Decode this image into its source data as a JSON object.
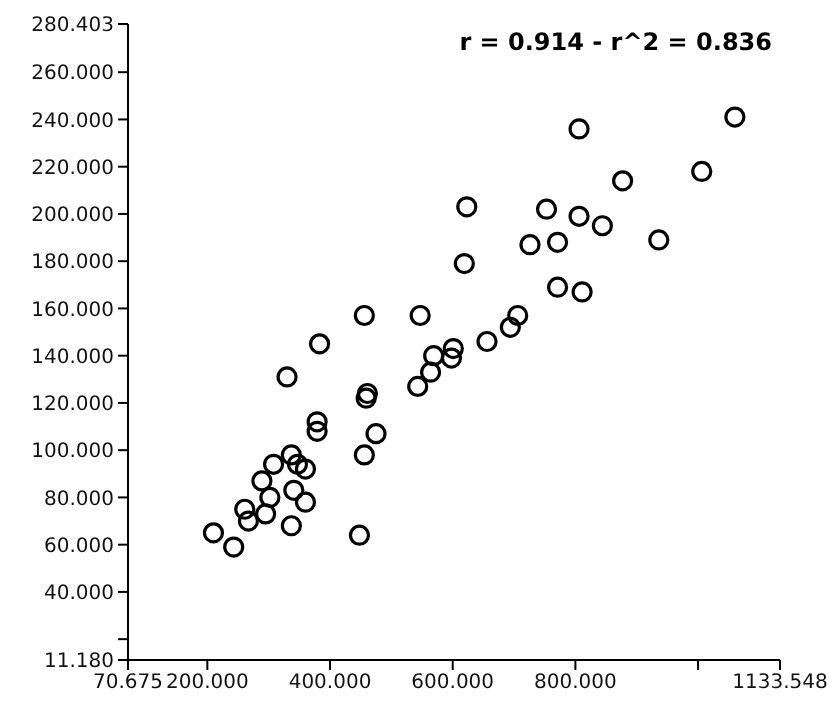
{
  "chart_data": {
    "type": "scatter",
    "annotations": [
      "r = 0.914 - r^2 = 0.836"
    ],
    "x": [
      210,
      243,
      261,
      267,
      289,
      295,
      302,
      308,
      337,
      337,
      341,
      347,
      360,
      360,
      330,
      379,
      379,
      383,
      448,
      456,
      456,
      459,
      461,
      475,
      543,
      547,
      564,
      569,
      598,
      601,
      619,
      623,
      656,
      694,
      706,
      726,
      753,
      771,
      771,
      806,
      806,
      811,
      844,
      877,
      936,
      1006,
      1060
    ],
    "series": [
      {
        "color": "#000000",
        "values": [
          65,
          59,
          75,
          70,
          87,
          73,
          80,
          94,
          98,
          68,
          83,
          94,
          92,
          78,
          131,
          112,
          108,
          145,
          64,
          98,
          157,
          122,
          124,
          107,
          127,
          157,
          133,
          140,
          139,
          143,
          179,
          203,
          146,
          152,
          157,
          187,
          202,
          188,
          169,
          236,
          199,
          167,
          195,
          214,
          189,
          218,
          241
        ]
      }
    ],
    "xlim": [
      70.675,
      1133.548
    ],
    "xticks": [
      {
        "value": 70.675,
        "label": "70.675"
      },
      {
        "value": 200,
        "label": "200.000"
      },
      {
        "value": 400,
        "label": "400.000"
      },
      {
        "value": 600,
        "label": "600.000"
      },
      {
        "value": 800,
        "label": "800.000"
      },
      {
        "value": 1000,
        "label": null
      },
      {
        "value": 1133.548,
        "label": "1133.548"
      }
    ],
    "ylim": [
      11.18,
      280.403
    ],
    "yticks": [
      {
        "value": 11.18,
        "label": "11.180"
      },
      {
        "value": 20,
        "label": null
      },
      {
        "value": 40,
        "label": "40.000"
      },
      {
        "value": 60,
        "label": "60.000"
      },
      {
        "value": 80,
        "label": "80.000"
      },
      {
        "value": 100,
        "label": "100.000"
      },
      {
        "value": 120,
        "label": "120.000"
      },
      {
        "value": 140,
        "label": "140.000"
      },
      {
        "value": 160,
        "label": "160.000"
      },
      {
        "value": 180,
        "label": "180.000"
      },
      {
        "value": 200,
        "label": "200.000"
      },
      {
        "value": 220,
        "label": "220.000"
      },
      {
        "value": 240,
        "label": "240.000"
      },
      {
        "value": 260,
        "label": "260.000"
      },
      {
        "value": 280.403,
        "label": "280.403"
      }
    ],
    "grid": false,
    "marker": "circle"
  }
}
